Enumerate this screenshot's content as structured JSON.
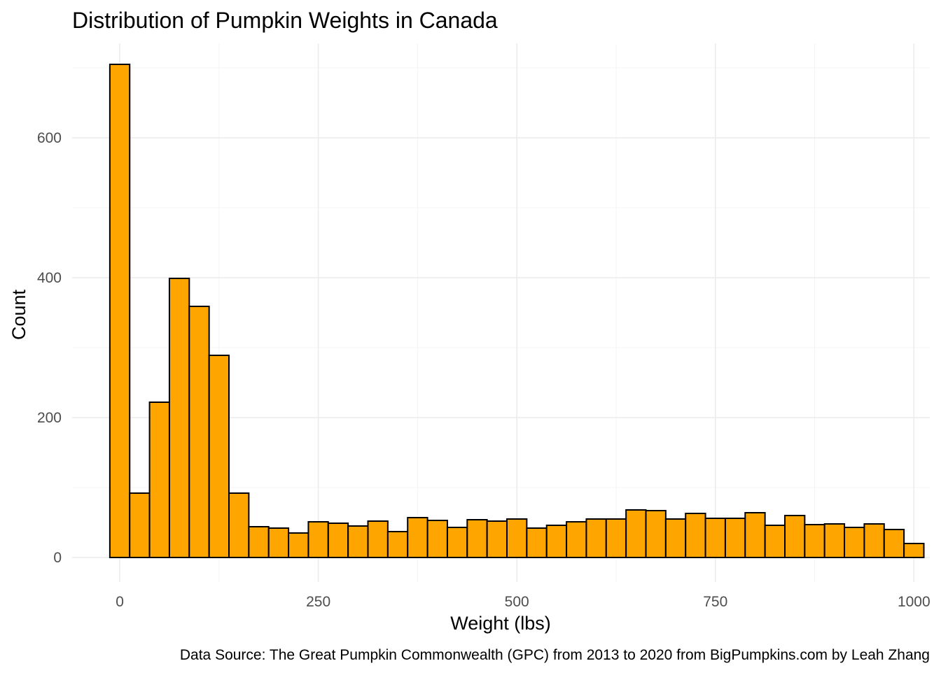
{
  "chart_data": {
    "type": "bar",
    "title": "Distribution of Pumpkin Weights in Canada",
    "xlabel": "Weight (lbs)",
    "ylabel": "Count",
    "caption": "Data Source: The Great Pumpkin Commonwealth (GPC) from 2013 to 2020 from BigPumpkins.com by Leah Zhang",
    "bin_width": 25,
    "bin_start": 0,
    "values": [
      705,
      92,
      222,
      399,
      359,
      289,
      92,
      44,
      42,
      35,
      51,
      49,
      45,
      52,
      37,
      57,
      53,
      43,
      54,
      52,
      55,
      42,
      46,
      51,
      55,
      55,
      68,
      67,
      55,
      63,
      56,
      56,
      64,
      46,
      60,
      47,
      48,
      43,
      48,
      40,
      20
    ],
    "xlim": [
      -60,
      1020
    ],
    "ylim": [
      -35,
      735
    ],
    "x_ticks": [
      {
        "value": 0,
        "label": "0"
      },
      {
        "value": 250,
        "label": "250"
      },
      {
        "value": 500,
        "label": "500"
      },
      {
        "value": 750,
        "label": "750"
      },
      {
        "value": 1000,
        "label": "1000"
      }
    ],
    "y_ticks": [
      {
        "value": 0,
        "label": "0"
      },
      {
        "value": 200,
        "label": "200"
      },
      {
        "value": 400,
        "label": "400"
      },
      {
        "value": 600,
        "label": "600"
      }
    ],
    "grid": true,
    "colors": {
      "bar_fill": "#FFA500",
      "bar_stroke": "#000000",
      "grid_major": "#EBEBEB",
      "grid_minor": "#F4F4F4",
      "tick_text": "#4D4D4D"
    }
  }
}
